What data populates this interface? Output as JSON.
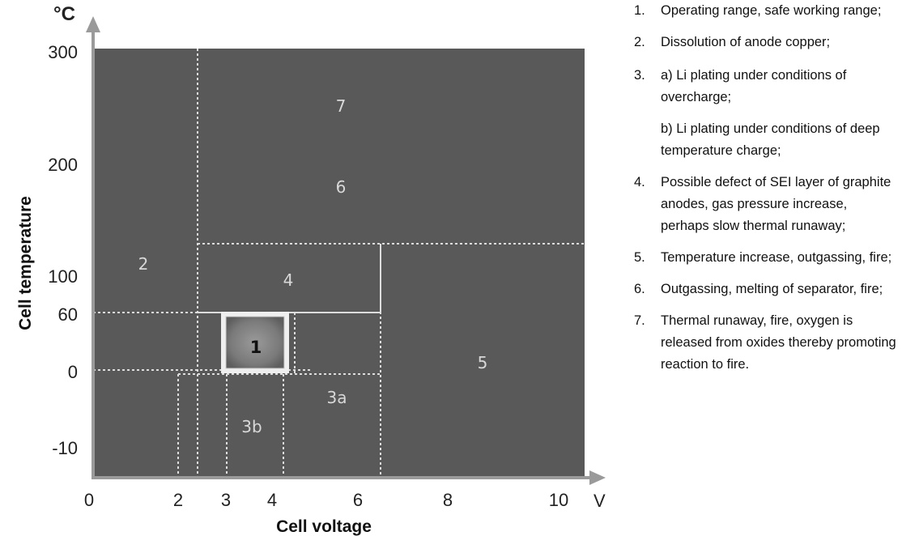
{
  "axes": {
    "y_unit": "°C",
    "x_unit": "V",
    "y_title": "Cell temperature",
    "x_title": "Cell voltage",
    "x_ticks": [
      "0",
      "2",
      "3",
      "4",
      "6",
      "8",
      "10"
    ],
    "y_ticks": [
      "300",
      "200",
      "100",
      "60",
      "0",
      "-10"
    ]
  },
  "regions": [
    {
      "id": "1",
      "label": "1"
    },
    {
      "id": "2",
      "label": "2"
    },
    {
      "id": "3a",
      "label": "3a"
    },
    {
      "id": "3b",
      "label": "3b"
    },
    {
      "id": "4",
      "label": "4"
    },
    {
      "id": "5",
      "label": "5"
    },
    {
      "id": "6",
      "label": "6"
    },
    {
      "id": "7",
      "label": "7"
    }
  ],
  "colors": {
    "plot_bg": "#595959",
    "safe_zone": "#7a7a7a",
    "boundary": "#e6e6e6"
  },
  "legend": [
    {
      "num": "1.",
      "text": "Operating range, safe working range;"
    },
    {
      "num": "2.",
      "text": "Dissolution of anode copper;"
    },
    {
      "num": "3.",
      "text": "a) Li plating under conditions of overcharge;",
      "sub": "b) Li plating under conditions of deep temperature charge;"
    },
    {
      "num": "4.",
      "text": "Possible defect of SEI layer of graphite anodes, gas pressure increase, perhaps slow thermal runaway;"
    },
    {
      "num": "5.",
      "text": "Temperature increase, outgassing, fire;"
    },
    {
      "num": "6.",
      "text": "Outgassing, melting of separator, fire;"
    },
    {
      "num": "7.",
      "text": "Thermal runaway, fire, oxygen is released from oxides thereby promoting reaction to fire."
    }
  ]
}
